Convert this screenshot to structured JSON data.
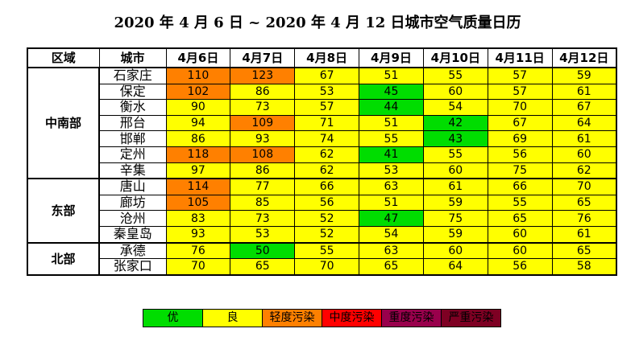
{
  "title": "2020 年 4 月 6 日 ~ 2020 年 4 月 12 日城市空气质量日历",
  "chart_data": {
    "type": "heatmap",
    "title": "2020 年 4 月 6 日 ~ 2020 年 4 月 12 日城市空气质量日历",
    "headers": [
      "区域",
      "城市"
    ],
    "dates": [
      "4月6日",
      "4月7日",
      "4月8日",
      "4月9日",
      "4月10日",
      "4月11日",
      "4月12日"
    ],
    "regions": [
      {
        "name": "中南部",
        "cities": [
          {
            "name": "石家庄",
            "values": [
              110,
              123,
              67,
              51,
              55,
              57,
              59
            ]
          },
          {
            "name": "保定",
            "values": [
              102,
              86,
              53,
              45,
              60,
              57,
              61
            ]
          },
          {
            "name": "衡水",
            "values": [
              90,
              73,
              57,
              44,
              54,
              70,
              67
            ]
          },
          {
            "name": "邢台",
            "values": [
              94,
              109,
              71,
              51,
              42,
              67,
              64
            ]
          },
          {
            "name": "邯郸",
            "values": [
              86,
              93,
              74,
              55,
              43,
              69,
              61
            ]
          },
          {
            "name": "定州",
            "values": [
              118,
              108,
              62,
              41,
              55,
              56,
              60
            ]
          },
          {
            "name": "辛集",
            "values": [
              97,
              86,
              62,
              53,
              60,
              75,
              62
            ]
          }
        ]
      },
      {
        "name": "东部",
        "cities": [
          {
            "name": "唐山",
            "values": [
              114,
              77,
              66,
              63,
              61,
              66,
              70
            ]
          },
          {
            "name": "廊坊",
            "values": [
              105,
              85,
              56,
              51,
              59,
              55,
              65
            ]
          },
          {
            "name": "沧州",
            "values": [
              83,
              73,
              52,
              47,
              75,
              65,
              76
            ]
          },
          {
            "name": "秦皇岛",
            "values": [
              93,
              53,
              52,
              54,
              59,
              60,
              61
            ]
          }
        ]
      },
      {
        "name": "北部",
        "cities": [
          {
            "name": "承德",
            "values": [
              76,
              50,
              55,
              63,
              60,
              60,
              65
            ]
          },
          {
            "name": "张家口",
            "values": [
              70,
              65,
              70,
              65,
              64,
              56,
              58
            ]
          }
        ]
      }
    ],
    "legend": [
      {
        "label": "优",
        "color": "#00dd00",
        "max": 50
      },
      {
        "label": "良",
        "color": "#ffff00",
        "max": 100
      },
      {
        "label": "轻度污染",
        "color": "#ff8000",
        "max": 150
      },
      {
        "label": "中度污染",
        "color": "#ff0000",
        "max": 200
      },
      {
        "label": "重度污染",
        "color": "#99004c",
        "max": 300
      },
      {
        "label": "严重污染",
        "color": "#7e0023",
        "max": null
      }
    ]
  }
}
